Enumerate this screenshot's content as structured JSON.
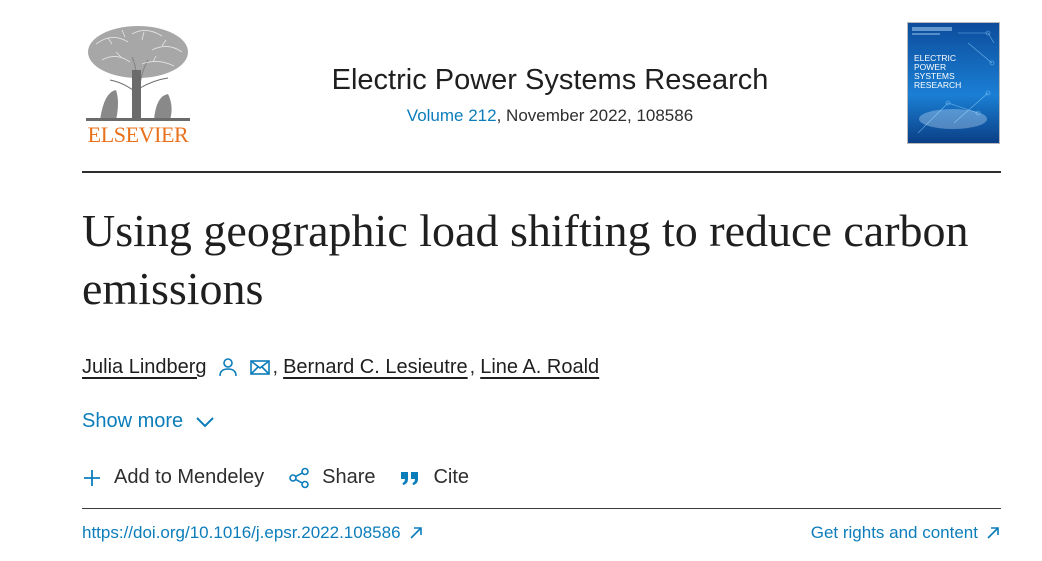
{
  "publisher": {
    "wordmark": "ELSEVIER"
  },
  "journal": {
    "title": "Electric Power Systems Research",
    "volume_link": "Volume 212",
    "issue_details": ", November 2022, 108586",
    "cover": {
      "line1": "ELECTRIC",
      "line2": "POWER",
      "line3": "SYSTEMS",
      "line4": "RESEARCH"
    }
  },
  "article": {
    "title": "Using geographic load shifting to reduce carbon emissions",
    "authors": [
      {
        "name": "Julia Lindberg",
        "separator": ","
      },
      {
        "name": "Bernard C. Lesieutre",
        "separator": ","
      },
      {
        "name": "Line A. Roald",
        "separator": ""
      }
    ],
    "show_more": "Show more"
  },
  "actions": {
    "mendeley": "Add to Mendeley",
    "share": "Share",
    "cite": "Cite"
  },
  "links": {
    "doi": "https://doi.org/10.1016/j.epsr.2022.108586",
    "rights": "Get rights and content"
  },
  "colors": {
    "link": "#0c7dbb",
    "brand_orange": "#e9711c",
    "text": "#2e2e2e"
  },
  "icons": [
    "person-icon",
    "email-icon",
    "chevron-down-icon",
    "plus-icon",
    "share-icon",
    "quote-icon",
    "external-link-icon"
  ]
}
